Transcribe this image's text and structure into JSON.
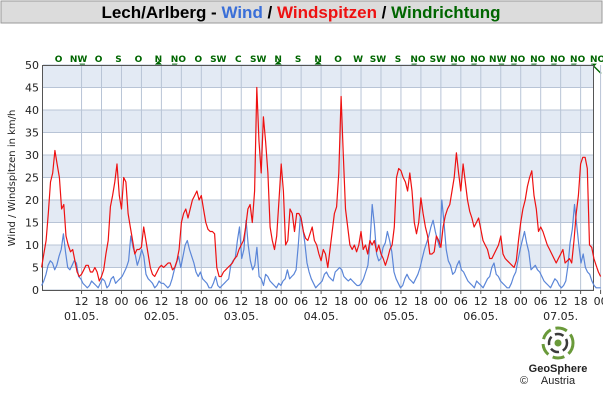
{
  "chart_data": {
    "type": "line",
    "title": {
      "station": "Lech/Arlberg",
      "sep1": " - ",
      "wind": "Wind",
      "sep2": " / ",
      "gusts": "Windspitzen",
      "sep3": " / ",
      "direction": "Windrichtung"
    },
    "colors": {
      "wind": "#5b86d8",
      "gusts": "#ee1111",
      "direction": "#006600",
      "title_bar": "#dcdcdc",
      "band": "#e3eaf4"
    },
    "ylabel": "Wind / Windspitzen in km/h",
    "ylim": [
      0,
      50
    ],
    "yticks": [
      0,
      5,
      10,
      15,
      20,
      25,
      30,
      35,
      40,
      45,
      50
    ],
    "xlim_hours": [
      0,
      168
    ],
    "x_unit": "hours from 01.05. 00:00 (tick labels show clock hour)",
    "hour_ticks": [
      12,
      18,
      "00",
      "06",
      12,
      18,
      "00",
      "06",
      12,
      18,
      "00",
      "06",
      12,
      18,
      "00",
      "06",
      12,
      18,
      "00",
      "06",
      12,
      18,
      "00",
      "06",
      12,
      18,
      "00",
      "06",
      12,
      18,
      "00"
    ],
    "day_labels": [
      "01.05.",
      "02.05.",
      "03.05.",
      "04.05.",
      "05.05.",
      "06.05.",
      "07.05."
    ],
    "wind_directions": [
      "O",
      "NW",
      "O",
      "S",
      "O",
      "N",
      "NO",
      "O",
      "SW",
      "C",
      "SW",
      "N",
      "S",
      "N",
      "O",
      "W",
      "SW",
      "S",
      "NO",
      "SW",
      "NO",
      "NO",
      "NW",
      "NO",
      "NO",
      "NO",
      "NO",
      "NO",
      "NO"
    ],
    "series": [
      {
        "key": "wind",
        "values": [
          1,
          2,
          3.5,
          5.5,
          6.5,
          6,
          4.5,
          5.5,
          7.5,
          9,
          12.5,
          8.5,
          5,
          4.5,
          5.5,
          6.5,
          6,
          3,
          2.5,
          1.5,
          1,
          0.5,
          1,
          2,
          1.5,
          1,
          0.5,
          1.5,
          2.5,
          2,
          0.5,
          1,
          2.5,
          3,
          1.5,
          2,
          2.5,
          3,
          4,
          5,
          6.5,
          12,
          9.5,
          8,
          5.5,
          7,
          9,
          7.5,
          3.5,
          2.5,
          2,
          1.5,
          0.5,
          1,
          2,
          1.5,
          1.5,
          1,
          0.5,
          1,
          2.5,
          4.5,
          6,
          7.5,
          5,
          7.5,
          10,
          11,
          9,
          7.5,
          6,
          4,
          3,
          4,
          2.5,
          2,
          1.5,
          0.5,
          0.5,
          1.5,
          3,
          1,
          0.5,
          1,
          1.5,
          2,
          2.5,
          5.5,
          6.5,
          7,
          11,
          14,
          7,
          9,
          15.5,
          10,
          6.5,
          4.5,
          5.5,
          9.5,
          3,
          2.5,
          1,
          3.5,
          3,
          2,
          1.5,
          1,
          0.5,
          1.5,
          1,
          2,
          2.5,
          4.5,
          2.5,
          3,
          3.5,
          4.5,
          10,
          16.5,
          14,
          10.5,
          6,
          4,
          2.5,
          1.5,
          0.5,
          1,
          1.5,
          2,
          3.5,
          4,
          3,
          2.5,
          2,
          4,
          4.5,
          5,
          4.5,
          3,
          2.5,
          2,
          2.5,
          2,
          1.5,
          1,
          1,
          1.5,
          2.5,
          4,
          5.5,
          10.5,
          19,
          14.5,
          8,
          6.5,
          7,
          9.5,
          10.5,
          13,
          11,
          8.5,
          4,
          2.5,
          1.5,
          0.5,
          1,
          2.5,
          3.5,
          2.5,
          2,
          1.5,
          2.5,
          3.5,
          5,
          7,
          9,
          10.5,
          12,
          14,
          15.5,
          13,
          11,
          9.5,
          20,
          15,
          9,
          6.5,
          5.5,
          3.5,
          4,
          5.5,
          6.5,
          4.5,
          4,
          3,
          2,
          1.5,
          1,
          0.5,
          2,
          1.5,
          1,
          0.5,
          1.5,
          2.5,
          3,
          5,
          6,
          3.5,
          3,
          2,
          1.5,
          1,
          0.5,
          0.5,
          1.5,
          3,
          4,
          6.5,
          9,
          11,
          13,
          10.5,
          8.5,
          4.5,
          5,
          5.5,
          4.5,
          4,
          3,
          2,
          1.5,
          1,
          0.5,
          1.5,
          2.5,
          2,
          1,
          0.5,
          1,
          2,
          5.5,
          10.5,
          13.5,
          19,
          14.5,
          10,
          6,
          8,
          5,
          4,
          3.5,
          2,
          1,
          0.5,
          0.5,
          0.5
        ]
      },
      {
        "key": "gusts",
        "values": [
          5,
          8,
          11,
          17,
          24,
          26,
          31,
          28,
          25,
          18,
          19,
          12,
          10,
          8.5,
          9,
          6.5,
          4,
          3,
          3.5,
          4.5,
          5.5,
          5.5,
          4,
          4,
          5,
          4,
          2,
          3,
          4.5,
          8,
          11,
          18.5,
          21,
          24,
          28,
          21,
          18,
          25,
          24,
          17,
          14,
          11,
          8,
          9,
          9,
          9.5,
          14,
          11,
          8,
          5,
          3.5,
          3,
          4,
          5,
          5.5,
          5,
          5.5,
          6,
          6,
          4.5,
          5,
          6.5,
          9,
          15,
          17,
          18,
          16,
          18,
          20,
          21,
          22,
          20,
          21,
          18,
          15,
          13.5,
          13,
          13,
          12.5,
          5,
          3,
          3,
          4,
          4.5,
          5,
          5.5,
          6,
          7,
          7.5,
          9,
          10,
          11,
          14,
          18,
          19,
          15,
          22,
          45,
          33,
          26,
          38.5,
          33,
          26,
          14,
          11,
          9,
          12,
          20,
          28,
          22,
          10,
          11,
          18,
          17,
          13,
          17,
          17,
          16,
          13,
          11.5,
          11,
          12.5,
          14,
          11,
          10,
          8,
          6.5,
          9,
          8,
          5,
          9,
          13,
          17,
          18.5,
          26,
          43,
          30,
          18,
          14,
          10,
          9,
          10,
          8.5,
          10,
          13,
          9,
          10,
          8,
          11,
          10,
          11,
          8.5,
          10,
          8,
          7,
          5.5,
          7,
          9,
          10,
          14,
          25,
          27,
          26.5,
          25,
          24,
          22,
          26,
          22,
          15,
          12.5,
          15,
          20.5,
          17,
          14,
          12,
          8,
          8,
          8.5,
          12,
          11,
          9.5,
          14,
          16.5,
          18,
          19,
          22,
          25,
          30.5,
          26,
          22,
          28,
          24,
          20,
          17.5,
          16,
          14,
          15,
          16,
          13.5,
          11,
          10,
          9,
          7,
          7,
          8,
          9,
          10,
          12,
          8,
          7,
          6.5,
          6,
          5.5,
          5,
          6.5,
          11,
          15,
          18,
          20,
          23,
          25,
          26.5,
          21,
          18,
          13,
          14,
          13,
          11.5,
          10,
          9,
          8,
          7,
          6,
          7,
          8,
          9,
          6,
          6.5,
          7,
          6,
          11,
          17,
          21,
          28,
          29.5,
          29.5,
          27,
          10,
          9.5,
          7,
          5.5,
          4,
          3
        ]
      }
    ]
  },
  "branding": {
    "name": "GeoSphere",
    "sub": "Austria",
    "copyright": "©"
  }
}
